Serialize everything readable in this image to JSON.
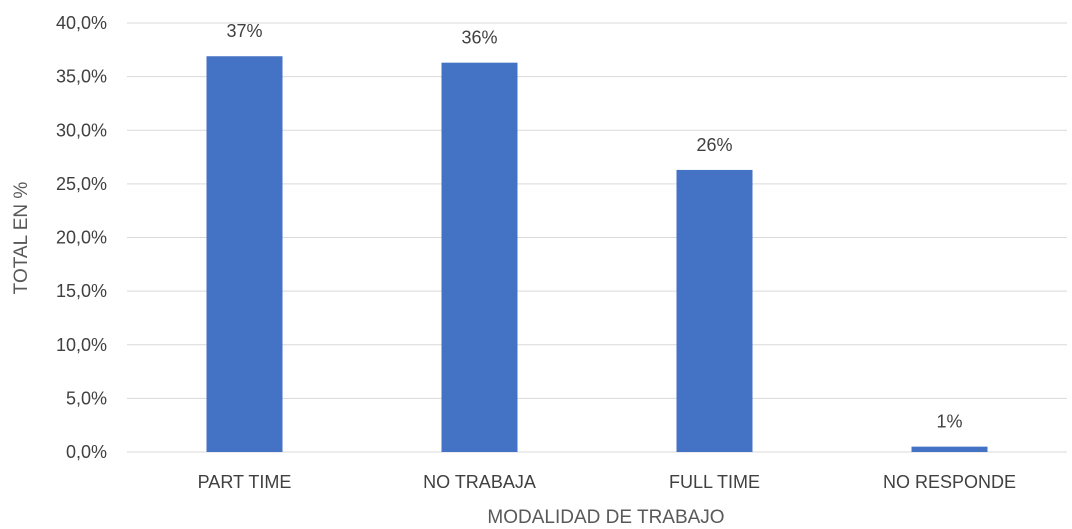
{
  "chart_data": {
    "type": "bar",
    "categories": [
      "PART TIME",
      "NO TRABAJA",
      "FULL TIME",
      "NO RESPONDE"
    ],
    "values": [
      36.9,
      36.3,
      26.3,
      0.5
    ],
    "data_labels": [
      "37%",
      "36%",
      "26%",
      "1%"
    ],
    "xlabel": "MODALIDAD DE TRABAJO",
    "ylabel": "TOTAL EN %",
    "ylim": [
      0,
      40
    ],
    "yticks": [
      0,
      5,
      10,
      15,
      20,
      25,
      30,
      35,
      40
    ],
    "ytick_labels": [
      "0,0%",
      "5,0%",
      "10,0%",
      "15,0%",
      "20,0%",
      "25,0%",
      "30,0%",
      "35,0%",
      "40,0%"
    ],
    "grid": true,
    "bar_color": "#4472C4",
    "grid_color": "#D9D9D9"
  }
}
